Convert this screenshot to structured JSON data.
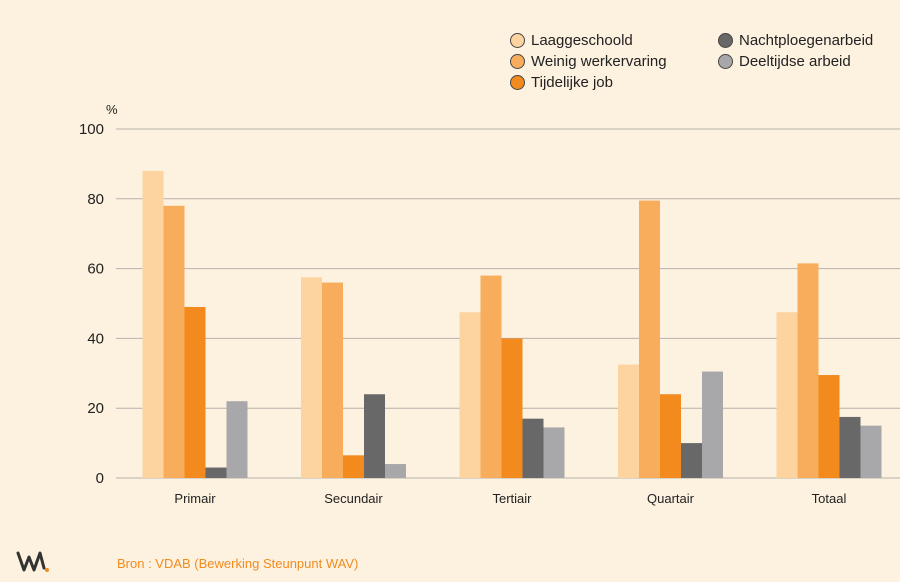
{
  "chart_data": {
    "type": "bar",
    "categories": [
      "Primair",
      "Secundair",
      "Tertiair",
      "Quartair",
      "Totaal"
    ],
    "series": [
      {
        "name": "Laaggeschoold",
        "color": "#fdd3a0",
        "values": [
          88,
          57.5,
          47.5,
          32.5,
          47.5
        ]
      },
      {
        "name": "Weinig werkervaring",
        "color": "#f8ad5c",
        "values": [
          78,
          56,
          58,
          79.5,
          61.5
        ]
      },
      {
        "name": "Tijdelijke job",
        "color": "#f28a1e",
        "values": [
          49,
          6.5,
          40,
          24,
          29.5
        ]
      },
      {
        "name": "Nachtploegenarbeid",
        "color": "#686868",
        "values": [
          3,
          24,
          17,
          10,
          17.5
        ]
      },
      {
        "name": "Deeltijdse arbeid",
        "color": "#a8a8aa",
        "values": [
          22,
          4,
          14.5,
          30.5,
          15
        ]
      }
    ],
    "ylabel": "%",
    "ylim": [
      0,
      100
    ],
    "yticks": [
      "0",
      "20",
      "40",
      "60",
      "80",
      "100"
    ],
    "grid": true,
    "legend_position": "top-right"
  },
  "source_text": "Bron : VDAB (Bewerking Steunpunt WAV)",
  "colors": {
    "background": "#fdf1e0",
    "grid": "#b9b2ab",
    "source_text": "#f08c1e"
  },
  "logo_icon": "wav-logo"
}
